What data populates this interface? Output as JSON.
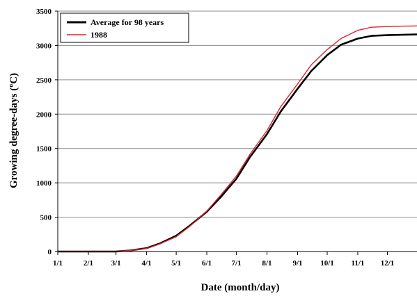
{
  "chart_data": {
    "type": "line",
    "xlabel": "Date (month/day)",
    "ylabel": "Growing degree-days (ºC)",
    "ylim": [
      0,
      3500
    ],
    "yticks": [
      0,
      500,
      1000,
      1500,
      2000,
      2500,
      3000,
      3500
    ],
    "xlim": [
      "1/1",
      "12/31"
    ],
    "xticks": [
      "1/1",
      "2/1",
      "3/1",
      "4/1",
      "5/1",
      "6/1",
      "7/1",
      "8/1",
      "9/1",
      "10/1",
      "11/1",
      "12/1"
    ],
    "grid": "horizontal",
    "legend": "top-left",
    "series": [
      {
        "name": "Average for 98 years",
        "color": "#000000",
        "x": [
          "1/1",
          "2/1",
          "3/1",
          "3/15",
          "4/1",
          "4/15",
          "5/1",
          "5/15",
          "6/1",
          "6/15",
          "7/1",
          "7/15",
          "8/1",
          "8/15",
          "9/1",
          "9/15",
          "10/1",
          "10/15",
          "11/1",
          "11/15",
          "12/1",
          "12/15",
          "12/31"
        ],
        "values": [
          0,
          0,
          0,
          15,
          50,
          120,
          230,
          380,
          580,
          790,
          1060,
          1380,
          1710,
          2040,
          2370,
          2630,
          2860,
          3010,
          3100,
          3140,
          3150,
          3155,
          3160
        ]
      },
      {
        "name": "1988",
        "color": "#e0202a",
        "x": [
          "1/1",
          "2/1",
          "3/1",
          "3/15",
          "4/1",
          "4/15",
          "5/1",
          "5/15",
          "6/1",
          "6/15",
          "7/1",
          "7/15",
          "8/1",
          "8/15",
          "9/1",
          "9/15",
          "10/1",
          "10/15",
          "11/1",
          "11/15",
          "12/1",
          "12/15",
          "12/31"
        ],
        "values": [
          0,
          0,
          0,
          15,
          45,
          115,
          215,
          370,
          590,
          820,
          1100,
          1420,
          1760,
          2110,
          2440,
          2720,
          2940,
          3100,
          3220,
          3265,
          3275,
          3280,
          3285
        ]
      }
    ]
  }
}
